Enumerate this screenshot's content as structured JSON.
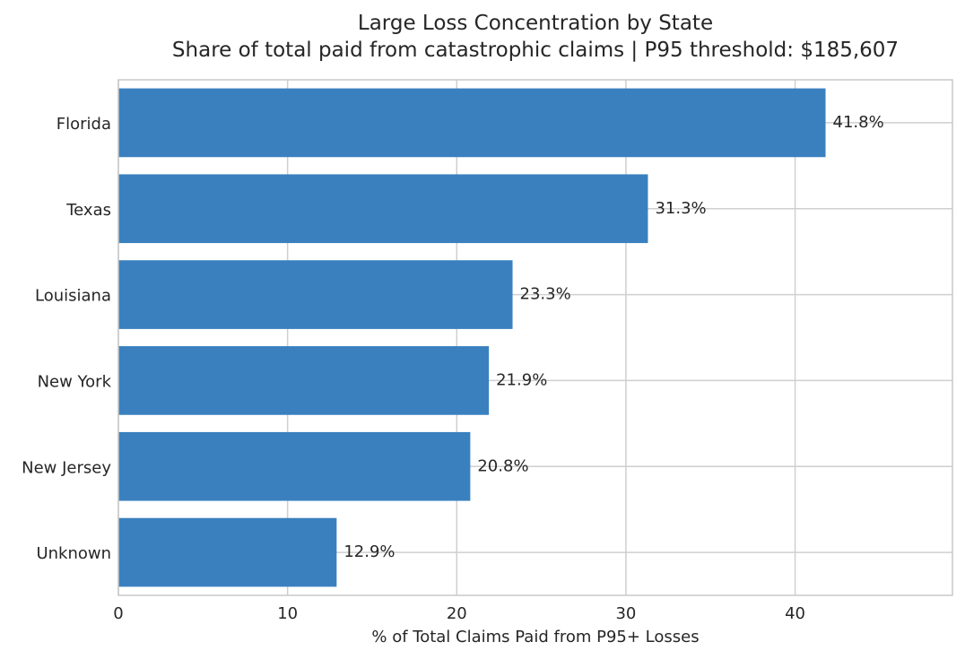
{
  "chart_data": {
    "type": "bar",
    "orientation": "horizontal",
    "title": "Large Loss Concentration by State",
    "subtitle": "Share of total paid from catastrophic claims  |  P95 threshold: $185,607",
    "xlabel": "% of Total Claims Paid from P95+ Losses",
    "ylabel": "",
    "categories": [
      "Florida",
      "Texas",
      "Louisiana",
      "New York",
      "New Jersey",
      "Unknown"
    ],
    "values": [
      41.8,
      31.3,
      23.3,
      21.9,
      20.8,
      12.9
    ],
    "value_labels": [
      "41.8%",
      "31.3%",
      "23.3%",
      "21.9%",
      "20.8%",
      "12.9%"
    ],
    "xlim": [
      0,
      49.3
    ],
    "xticks": [
      0,
      10,
      20,
      30,
      40
    ],
    "xtick_labels": [
      "0",
      "10",
      "20",
      "30",
      "40"
    ],
    "grid": true,
    "legend": "none",
    "bar_color": "#3a80bf",
    "grid_color": "#cfcfcf",
    "spine_color": "#c8c8c8"
  }
}
